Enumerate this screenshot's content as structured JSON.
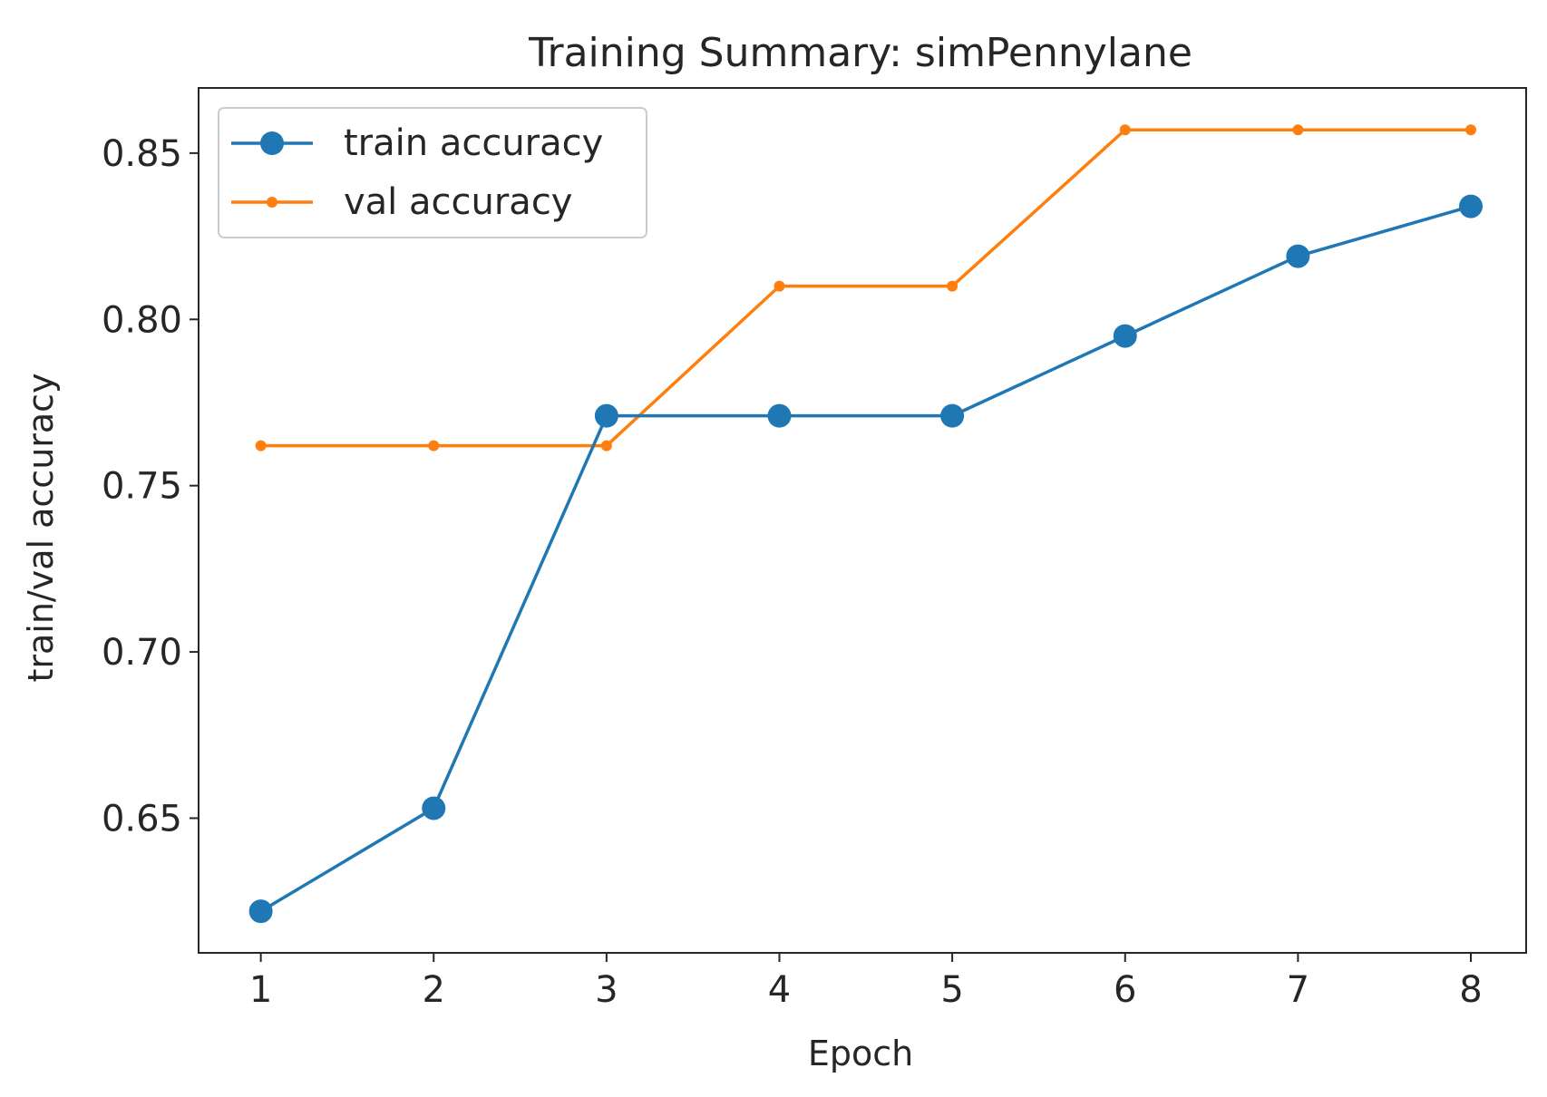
{
  "chart_data": {
    "type": "line",
    "title": "Training Summary: simPennylane",
    "xlabel": "Epoch",
    "ylabel": "train/val accuracy",
    "x": [
      1,
      2,
      3,
      4,
      5,
      6,
      7,
      8
    ],
    "xlim": [
      0.64,
      8.32
    ],
    "ylim": [
      0.6095,
      0.8696
    ],
    "xticks": [
      1,
      2,
      3,
      4,
      5,
      6,
      7,
      8
    ],
    "yticks": [
      0.65,
      0.7,
      0.75,
      0.8,
      0.85
    ],
    "ytick_labels": [
      "0.65",
      "0.70",
      "0.75",
      "0.80",
      "0.85"
    ],
    "grid": false,
    "legend_position": "top-left",
    "series": [
      {
        "name": "train accuracy",
        "color": "#1f77b4",
        "marker": "circle",
        "values": [
          0.622,
          0.653,
          0.771,
          0.771,
          0.771,
          0.795,
          0.819,
          0.834
        ]
      },
      {
        "name": "val accuracy",
        "color": "#ff7f0e",
        "marker": "small-dot",
        "values": [
          0.762,
          0.762,
          0.762,
          0.81,
          0.81,
          0.857,
          0.857,
          0.857
        ]
      }
    ]
  }
}
